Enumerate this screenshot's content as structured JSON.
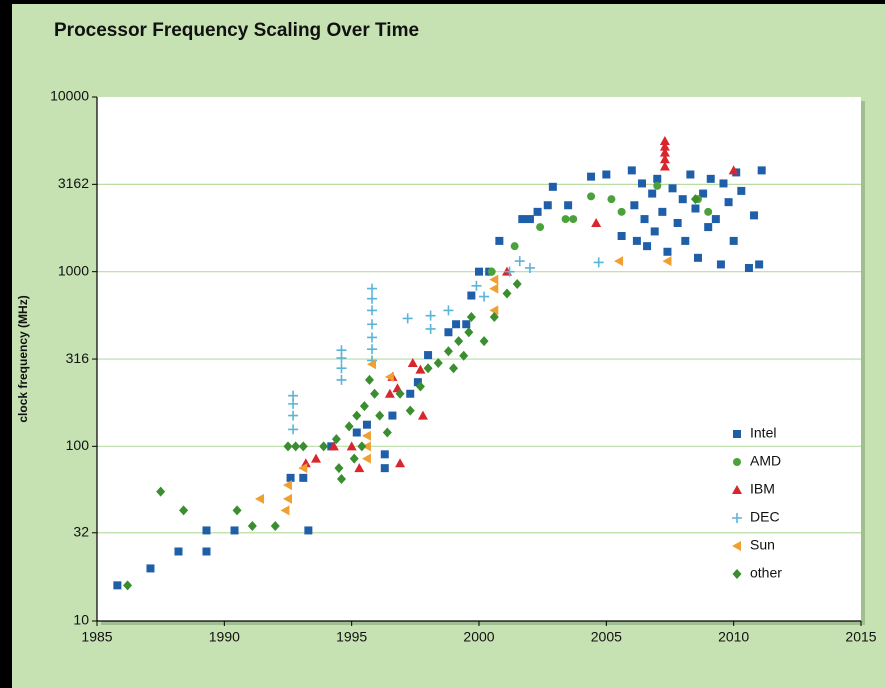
{
  "chart_data": {
    "type": "scatter",
    "title": "Processor Frequency Scaling Over Time",
    "y_label": "clock frequency (MHz)",
    "log_y": true,
    "grid": true,
    "legend": "lower right",
    "xlim": [
      1985,
      2015
    ],
    "xticks": [
      1985,
      1990,
      1995,
      2000,
      2005,
      2010,
      2015
    ],
    "ylim": [
      10,
      10000
    ],
    "yticks": [
      10,
      32,
      100,
      316,
      1000,
      3162,
      10000
    ],
    "series": [
      {
        "name": "Intel",
        "color": "#1f5ea8",
        "marker": "square",
        "x": [
          1985.8,
          1987.1,
          1988.2,
          1988.2,
          1989.3,
          1989.3,
          1990.4,
          1992.6,
          1993.1,
          1993.3,
          1994.2,
          1995.2,
          1995.6,
          1996.3,
          1996.3,
          1996.6,
          1997.3,
          1997.6,
          1998.0,
          1998.8,
          1999.1,
          1999.5,
          1999.7,
          2000.0,
          2000.4,
          2000.8,
          2001.7,
          2002.0,
          2002.3,
          2002.7,
          2002.9,
          2003.5,
          2004.4,
          2005.0,
          2005.6,
          2006.0,
          2006.1,
          2006.2,
          2006.4,
          2006.5,
          2006.6,
          2006.8,
          2006.9,
          2007.0,
          2007.2,
          2007.4,
          2007.6,
          2007.8,
          2008.0,
          2008.1,
          2008.3,
          2008.5,
          2008.6,
          2008.8,
          2009.0,
          2009.1,
          2009.3,
          2009.5,
          2009.6,
          2009.8,
          2010.0,
          2010.1,
          2010.3,
          2010.6,
          2010.8,
          2011.0,
          2011.1
        ],
        "values": [
          16,
          20,
          25,
          25,
          25,
          33,
          33,
          66,
          66,
          33,
          100,
          120,
          133,
          90,
          75,
          150,
          200,
          233,
          333,
          450,
          500,
          500,
          730,
          1000,
          1000,
          1500,
          2000,
          2000,
          2200,
          2400,
          3060,
          2400,
          3500,
          3600,
          1600,
          3800,
          2400,
          1500,
          3200,
          2000,
          1400,
          2800,
          1700,
          3400,
          2200,
          1300,
          3000,
          1900,
          2600,
          1500,
          3600,
          2300,
          1200,
          2800,
          1800,
          3400,
          2000,
          1100,
          3200,
          2500,
          1500,
          3700,
          2900,
          1050,
          2100,
          1100,
          3800
        ]
      },
      {
        "name": "AMD",
        "color": "#4ca23a",
        "marker": "circle",
        "x": [
          2000.5,
          2001.4,
          2002.4,
          2003.4,
          2003.7,
          2004.4,
          2005.2,
          2005.6,
          2007.0,
          2008.6,
          2009.0
        ],
        "values": [
          1000,
          1400,
          1800,
          2000,
          2000,
          2700,
          2600,
          2200,
          3100,
          2600,
          2200
        ]
      },
      {
        "name": "IBM",
        "color": "#d9262c",
        "marker": "triangle",
        "x": [
          1993.2,
          1993.6,
          1994.3,
          1995.0,
          1995.3,
          1996.5,
          1996.6,
          1996.8,
          1996.9,
          1997.4,
          1997.7,
          1997.8,
          2001.1,
          2004.6,
          2007.3,
          2007.3,
          2007.3,
          2007.3,
          2007.3,
          2010.0
        ],
        "values": [
          80,
          85,
          100,
          100,
          75,
          200,
          250,
          215,
          80,
          300,
          275,
          150,
          1000,
          1900,
          4000,
          4400,
          4800,
          5200,
          5600,
          3800
        ]
      },
      {
        "name": "DEC",
        "color": "#5ab4d8",
        "marker": "plus",
        "x": [
          1992.7,
          1992.7,
          1992.7,
          1992.7,
          1994.6,
          1994.6,
          1994.6,
          1994.6,
          1995.8,
          1995.8,
          1995.8,
          1995.8,
          1995.8,
          1995.8,
          1995.8,
          1997.2,
          1998.1,
          1998.1,
          1998.8,
          1999.9,
          2000.2,
          2001.2,
          2001.6,
          2002.0,
          2004.7
        ],
        "values": [
          125,
          150,
          175,
          195,
          240,
          280,
          320,
          355,
          310,
          360,
          420,
          500,
          600,
          700,
          800,
          540,
          470,
          560,
          600,
          830,
          720,
          1000,
          1150,
          1050,
          1130
        ]
      },
      {
        "name": "Sun",
        "color": "#f0a030",
        "marker": "triangle-left",
        "x": [
          1991.4,
          1992.4,
          1992.5,
          1992.5,
          1993.1,
          1995.6,
          1995.6,
          1995.6,
          1995.8,
          1996.5,
          2000.6,
          2000.6,
          2000.6,
          2005.5,
          2007.4
        ],
        "values": [
          50,
          43,
          50,
          60,
          75,
          85,
          100,
          115,
          295,
          250,
          600,
          800,
          900,
          1150,
          1150
        ]
      },
      {
        "name": "other",
        "color": "#3a8e30",
        "marker": "diamond",
        "x": [
          1986.2,
          1987.5,
          1988.4,
          1990.5,
          1991.1,
          1992.0,
          1992.5,
          1992.8,
          1993.1,
          1993.9,
          1994.4,
          1994.5,
          1994.6,
          1994.9,
          1995.1,
          1995.2,
          1995.4,
          1995.5,
          1995.7,
          1995.9,
          1996.1,
          1996.4,
          1996.9,
          1997.3,
          1997.7,
          1998.0,
          1998.4,
          1998.8,
          1999.0,
          1999.2,
          1999.4,
          1999.6,
          1999.7,
          2000.2,
          2000.6,
          2001.1,
          2001.5,
          2008.5
        ],
        "values": [
          16,
          55,
          43,
          43,
          35,
          35,
          100,
          100,
          100,
          100,
          110,
          75,
          65,
          130,
          85,
          150,
          100,
          170,
          240,
          200,
          150,
          120,
          200,
          160,
          220,
          280,
          300,
          350,
          280,
          400,
          330,
          450,
          550,
          400,
          550,
          750,
          850,
          2600
        ]
      }
    ]
  }
}
